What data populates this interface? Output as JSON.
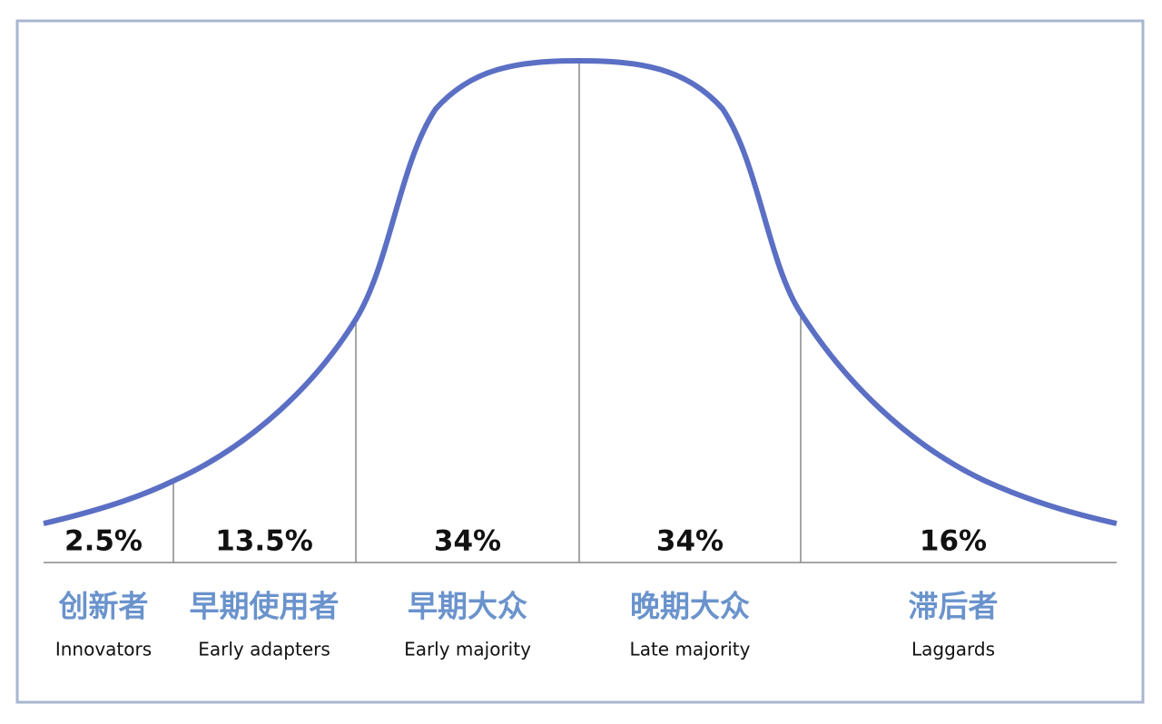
{
  "segments": [
    {
      "share": "2.5%",
      "label_zh": "创新者",
      "label_en": "Innovators"
    },
    {
      "share": "13.5%",
      "label_zh": "早期使用者",
      "label_en": "Early adapters"
    },
    {
      "share": "34%",
      "label_zh": "早期大众",
      "label_en": "Early majority"
    },
    {
      "share": "34%",
      "label_zh": "晚期大众",
      "label_en": "Late majority"
    },
    {
      "share": "16%",
      "label_zh": "滞后者",
      "label_en": "Laggards"
    }
  ]
}
